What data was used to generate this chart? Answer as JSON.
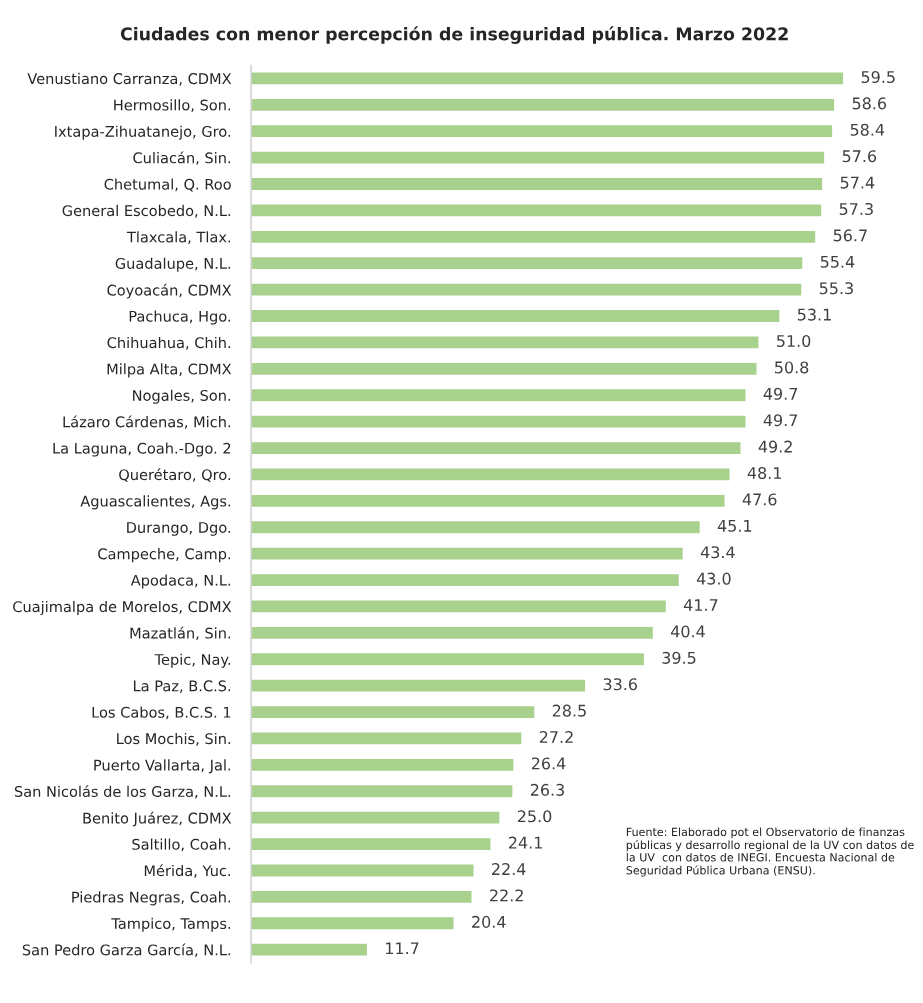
{
  "chart_data": {
    "type": "bar",
    "orientation": "horizontal",
    "title": "Ciudades con menor percepción de inseguridad pública. Marzo 2022",
    "categories": [
      "Venustiano Carranza, CDMX",
      "Hermosillo, Son.",
      "Ixtapa-Zihuatanejo, Gro.",
      "Culiacán, Sin.",
      "Chetumal, Q. Roo",
      "General Escobedo, N.L.",
      "Tlaxcala, Tlax.",
      "Guadalupe, N.L.",
      "Coyoacán, CDMX",
      "Pachuca, Hgo.",
      "Chihuahua, Chih.",
      "Milpa Alta, CDMX",
      "Nogales, Son.",
      "Lázaro Cárdenas, Mich.",
      "La Laguna, Coah.-Dgo. 2",
      "Querétaro, Qro.",
      "Aguascalientes, Ags.",
      "Durango, Dgo.",
      "Campeche, Camp.",
      "Apodaca, N.L.",
      "Cuajimalpa de Morelos, CDMX",
      "Mazatlán, Sin.",
      "Tepic, Nay.",
      "La Paz, B.C.S.",
      "Los Cabos, B.C.S. 1",
      "Los Mochis, Sin.",
      "Puerto Vallarta, Jal.",
      "San Nicolás de los Garza, N.L.",
      "Benito Juárez, CDMX",
      "Saltillo, Coah.",
      "Mérida, Yuc.",
      "Piedras Negras, Coah.",
      "Tampico, Tamps.",
      "San Pedro Garza García, N.L."
    ],
    "values": [
      59.5,
      58.6,
      58.4,
      57.6,
      57.4,
      57.3,
      56.7,
      55.4,
      55.3,
      53.1,
      51.0,
      50.8,
      49.7,
      49.7,
      49.2,
      48.1,
      47.6,
      45.1,
      43.4,
      43.0,
      41.7,
      40.4,
      39.5,
      33.6,
      28.5,
      27.2,
      26.4,
      26.3,
      25.0,
      24.1,
      22.4,
      22.2,
      20.4,
      11.7
    ],
    "value_labels": [
      "59.5",
      "58.6",
      "58.4",
      "57.6",
      "57.4",
      "57.3",
      "56.7",
      "55.4",
      "55.3",
      "53.1",
      "51.0",
      "50.8",
      "49.7",
      "49.7",
      "49.2",
      "48.1",
      "47.6",
      "45.1",
      "43.4",
      "43.0",
      "41.7",
      "40.4",
      "39.5",
      "33.6",
      "28.5",
      "27.2",
      "26.4",
      "26.3",
      "25.0",
      "24.1",
      "22.4",
      "22.2",
      "20.4",
      "11.7"
    ],
    "color": "#a9d18e",
    "grid": false,
    "legend": false,
    "annotations": [
      "Fuente: Elaborado pot el Observatorio de finanzas públicas y desarrollo regional de la UV con datos de la UV  con datos de INEGI. Encuesta Nacional de Seguridad Pública Urbana (ENSU)."
    ]
  }
}
